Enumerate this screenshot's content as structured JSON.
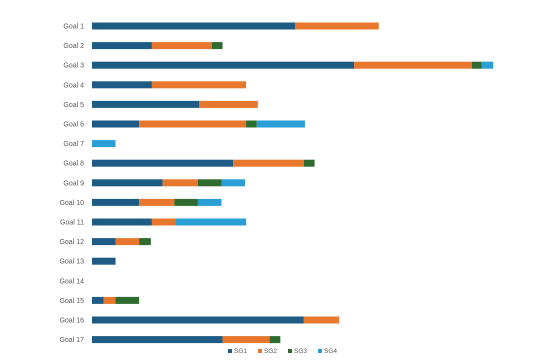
{
  "chart_data": {
    "type": "bar",
    "orientation": "horizontal",
    "stacked": true,
    "title": "",
    "xlabel": "",
    "ylabel": "",
    "categories": [
      "Goal 1",
      "Goal 2",
      "Goal 3",
      "Goal 4",
      "Goal 5",
      "Goal 6",
      "Goal 7",
      "Goal 8",
      "Goal 9",
      "Goal 10",
      "Goal 11",
      "Goal 12",
      "Goal 13",
      "Goal 14",
      "Goal 15",
      "Goal 16",
      "Goal 17"
    ],
    "series": [
      {
        "name": "SG1",
        "color": "#1f5c85",
        "values": [
          190,
          56,
          245,
          56,
          100,
          44,
          0,
          132,
          66,
          44,
          56,
          22,
          22,
          0,
          11,
          198,
          122
        ]
      },
      {
        "name": "SG2",
        "color": "#e8772e",
        "values": [
          78,
          56,
          110,
          88,
          55,
          100,
          0,
          66,
          33,
          33,
          22,
          22,
          0,
          0,
          11,
          33,
          44
        ]
      },
      {
        "name": "SG3",
        "color": "#2f6b2f",
        "values": [
          0,
          10,
          9,
          0,
          0,
          10,
          0,
          10,
          22,
          22,
          0,
          11,
          0,
          0,
          22,
          0,
          10
        ]
      },
      {
        "name": "SG4",
        "color": "#2a9fd6",
        "values": [
          0,
          0,
          11,
          0,
          0,
          45,
          22,
          0,
          22,
          22,
          66,
          0,
          0,
          0,
          0,
          0,
          0
        ]
      }
    ],
    "xlim": [
      0,
      400
    ],
    "grid": false,
    "legend_position": "bottom"
  }
}
